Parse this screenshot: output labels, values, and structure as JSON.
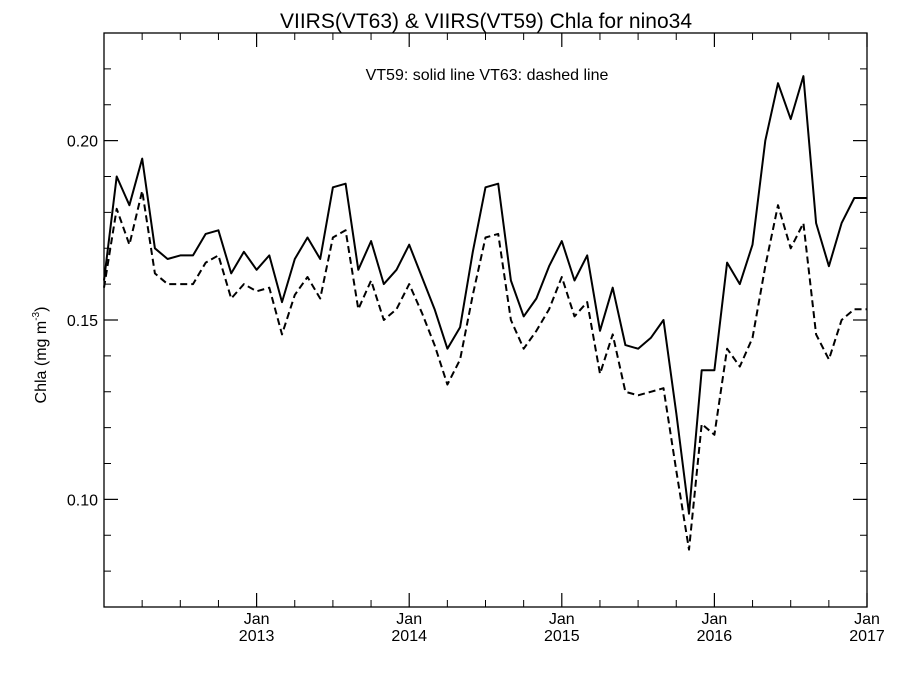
{
  "chart_data": {
    "type": "line",
    "title": "VIIRS(VT63) & VIIRS(VT59)  Chla for nino34",
    "annotation": "VT59: solid line   VT63: dashed line",
    "ylabel": "Chla (mg m",
    "ylabel_sup": "-3",
    "ylabel_close": ")",
    "ylim": [
      0.07,
      0.23
    ],
    "yticks": [
      0.1,
      0.15,
      0.2
    ],
    "ytick_labels": [
      "0.10",
      "0.15",
      "0.20"
    ],
    "yminor_step": 0.01,
    "xlim": [
      "2012-01",
      "2017-01"
    ],
    "xticks": [
      {
        "x": "2013-01",
        "month": "Jan",
        "year": "2013"
      },
      {
        "x": "2014-01",
        "month": "Jan",
        "year": "2014"
      },
      {
        "x": "2015-01",
        "month": "Jan",
        "year": "2015"
      },
      {
        "x": "2016-01",
        "month": "Jan",
        "year": "2016"
      },
      {
        "x": "2017-01",
        "month": "Jan",
        "year": "2017"
      }
    ],
    "x": [
      "2012-01",
      "2012-02",
      "2012-03",
      "2012-04",
      "2012-05",
      "2012-06",
      "2012-07",
      "2012-08",
      "2012-09",
      "2012-10",
      "2012-11",
      "2012-12",
      "2013-01",
      "2013-02",
      "2013-03",
      "2013-04",
      "2013-05",
      "2013-06",
      "2013-07",
      "2013-08",
      "2013-09",
      "2013-10",
      "2013-11",
      "2013-12",
      "2014-01",
      "2014-02",
      "2014-03",
      "2014-04",
      "2014-05",
      "2014-06",
      "2014-07",
      "2014-08",
      "2014-09",
      "2014-10",
      "2014-11",
      "2014-12",
      "2015-01",
      "2015-02",
      "2015-03",
      "2015-04",
      "2015-05",
      "2015-06",
      "2015-07",
      "2015-08",
      "2015-09",
      "2015-10",
      "2015-11",
      "2015-12",
      "2016-01",
      "2016-02",
      "2016-03",
      "2016-04",
      "2016-05",
      "2016-06",
      "2016-07",
      "2016-08",
      "2016-09",
      "2016-10",
      "2016-11",
      "2016-12",
      "2017-01"
    ],
    "series": [
      {
        "line_style": "solid",
        "values": [
          0.161,
          0.19,
          0.182,
          0.195,
          0.17,
          0.167,
          0.168,
          0.168,
          0.174,
          0.175,
          0.163,
          0.169,
          0.164,
          0.168,
          0.155,
          0.167,
          0.173,
          0.167,
          0.187,
          0.188,
          0.164,
          0.172,
          0.16,
          0.164,
          0.171,
          0.162,
          0.153,
          0.142,
          0.148,
          0.169,
          0.187,
          0.188,
          0.161,
          0.151,
          0.156,
          0.165,
          0.172,
          0.161,
          0.168,
          0.147,
          0.159,
          0.143,
          0.142,
          0.145,
          0.15,
          0.124,
          0.096,
          0.136,
          0.136,
          0.166,
          0.16,
          0.171,
          0.2,
          0.216,
          0.206,
          0.218,
          0.177,
          0.165,
          0.177,
          0.184,
          0.184
        ]
      },
      {
        "line_style": "dashed",
        "values": [
          0.159,
          0.181,
          0.171,
          0.186,
          0.163,
          0.16,
          0.16,
          0.16,
          0.166,
          0.168,
          0.156,
          0.16,
          0.158,
          0.159,
          0.146,
          0.157,
          0.162,
          0.156,
          0.173,
          0.175,
          0.153,
          0.161,
          0.15,
          0.153,
          0.16,
          0.152,
          0.143,
          0.132,
          0.139,
          0.157,
          0.173,
          0.174,
          0.15,
          0.142,
          0.147,
          0.153,
          0.162,
          0.151,
          0.155,
          0.135,
          0.146,
          0.13,
          0.129,
          0.13,
          0.131,
          0.108,
          0.086,
          0.121,
          0.118,
          0.142,
          0.137,
          0.145,
          0.165,
          0.182,
          0.17,
          0.177,
          0.146,
          0.139,
          0.15,
          0.153,
          0.153
        ]
      }
    ],
    "grid": false,
    "legend": "none"
  }
}
